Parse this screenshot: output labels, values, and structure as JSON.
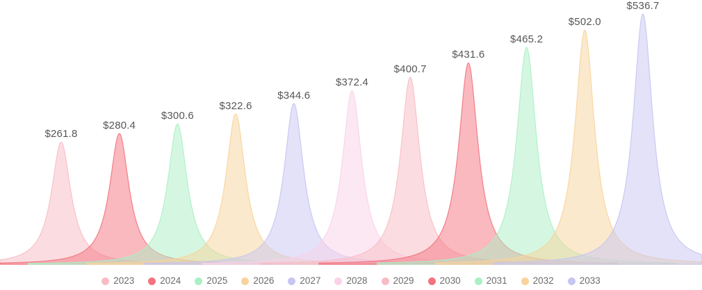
{
  "chart": {
    "background": "#FFFFFF",
    "value_label_color": "#565656",
    "legend_text_color": "#6B6B6B",
    "fill_opacity": 0.5,
    "stroke_opacity": 0.9
  },
  "chart_data": {
    "type": "area",
    "subtype": "peak-spike-series",
    "title": "",
    "xlabel": "",
    "ylabel": "",
    "grid": false,
    "axes_visible": false,
    "legend_position": "bottom",
    "ylim": [
      0,
      536.7
    ],
    "categories": [
      "2023",
      "2024",
      "2025",
      "2026",
      "2027",
      "2028",
      "2029",
      "2030",
      "2031",
      "2032",
      "2033"
    ],
    "values": [
      261.8,
      280.4,
      300.6,
      322.6,
      344.6,
      372.4,
      400.7,
      431.6,
      465.2,
      502.0,
      536.7
    ],
    "value_labels": [
      "$261.8",
      "$280.4",
      "$300.6",
      "$322.6",
      "$344.6",
      "$372.4",
      "$400.7",
      "$431.6",
      "$465.2",
      "$502.0",
      "$536.7"
    ],
    "series_colors": [
      "#F8BCC4",
      "#F3747F",
      "#ABEFC4",
      "#F8D49C",
      "#C7C5F1",
      "#FAD2E8",
      "#F8BCC4",
      "#F3747F",
      "#ABEFC4",
      "#F8D49C",
      "#C7C5F1"
    ]
  }
}
